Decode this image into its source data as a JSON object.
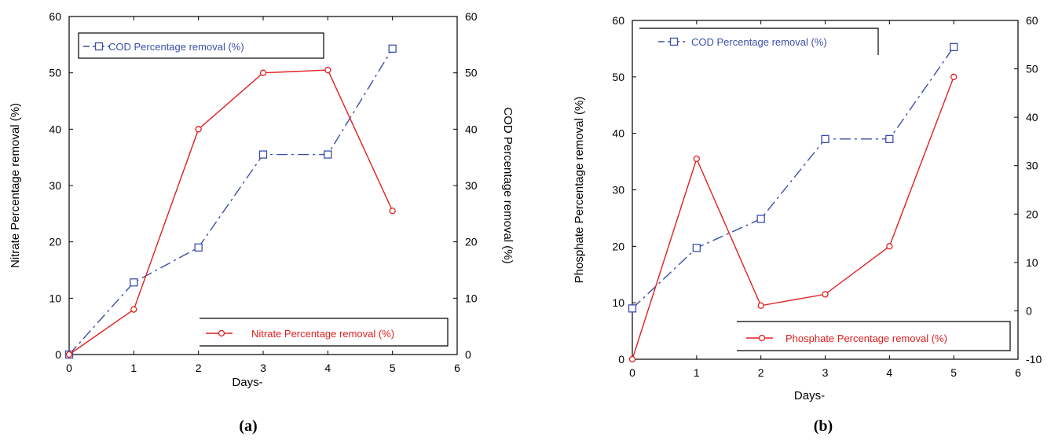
{
  "chart_data": [
    {
      "type": "line",
      "panel_label": "(a)",
      "xlabel": "Days-",
      "ylabel": "Nitrate Percentage removal (%)",
      "y2label": "COD Percentage removal (%)",
      "xlim": [
        0,
        6
      ],
      "ylim": [
        0,
        60
      ],
      "y2lim": [
        0,
        60
      ],
      "xticks": [
        "0",
        "1",
        "2",
        "3",
        "4",
        "5",
        "6"
      ],
      "yticks": [
        "0",
        "10",
        "20",
        "30",
        "40",
        "50",
        "60"
      ],
      "y2ticks": [
        "0",
        "10",
        "20",
        "30",
        "40",
        "50",
        "60"
      ],
      "grid": false,
      "series": [
        {
          "name": "COD Percentage removal (%)",
          "axis": "right",
          "color": "#3b4fa8",
          "marker": "square",
          "linestyle": "dashdot",
          "legend_position": "top-left",
          "x": [
            0,
            1,
            2,
            3,
            4,
            5
          ],
          "values": [
            0,
            12.8,
            19,
            35.5,
            35.5,
            54.3
          ]
        },
        {
          "name": "Nitrate Percentage removal (%)",
          "axis": "left",
          "color": "#e02020",
          "marker": "circle",
          "linestyle": "solid",
          "legend_position": "bottom-right",
          "x": [
            0,
            1,
            2,
            3,
            4,
            5
          ],
          "values": [
            0,
            8,
            40,
            50,
            50.5,
            25.5
          ]
        }
      ]
    },
    {
      "type": "line",
      "panel_label": "(b)",
      "xlabel": "Days-",
      "ylabel": "Phosphate Percentage removal (%)",
      "y2label": "",
      "xlim": [
        0,
        6
      ],
      "ylim": [
        0,
        60
      ],
      "y2lim": [
        -10,
        60
      ],
      "xticks": [
        "0",
        "1",
        "2",
        "3",
        "4",
        "5",
        "6"
      ],
      "yticks": [
        "0",
        "10",
        "20",
        "30",
        "40",
        "50",
        "60"
      ],
      "y2ticks": [
        "-10",
        "0",
        "10",
        "20",
        "30",
        "40",
        "50",
        "60"
      ],
      "grid": false,
      "series": [
        {
          "name": "COD Percentage removal (%)",
          "axis": "right",
          "color": "#3b4fa8",
          "marker": "square",
          "linestyle": "dashdot",
          "legend_position": "top-left",
          "x": [
            0,
            1,
            2,
            3,
            4,
            5
          ],
          "values": [
            0.5,
            13,
            19,
            35.5,
            35.5,
            54.5
          ]
        },
        {
          "name": "Phosphate Percentage removal (%)",
          "axis": "left",
          "color": "#e02020",
          "marker": "circle",
          "linestyle": "solid",
          "legend_position": "bottom-right",
          "x": [
            0,
            1,
            2,
            3,
            4,
            5
          ],
          "values": [
            0,
            35.5,
            9.5,
            11.5,
            20,
            50
          ]
        }
      ]
    }
  ]
}
